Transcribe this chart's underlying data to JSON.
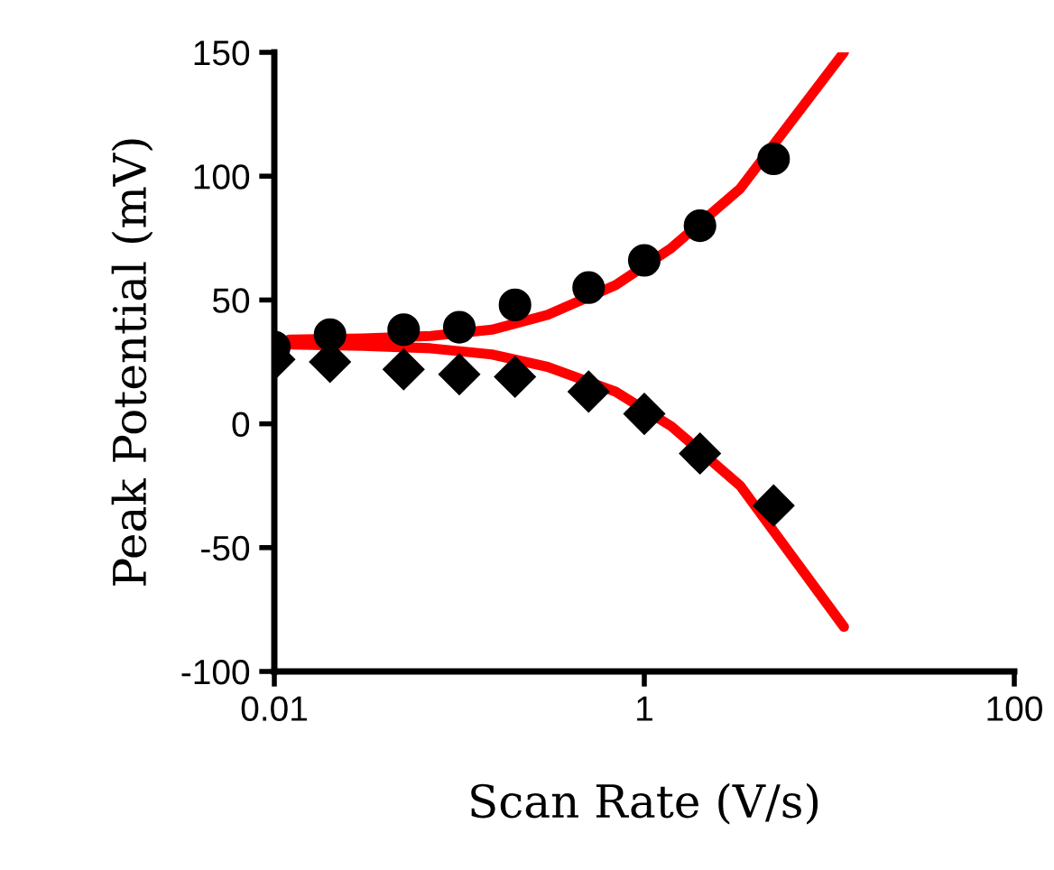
{
  "chart_data": {
    "type": "scatter",
    "xlabel": "Scan Rate (V/s)",
    "ylabel": "Peak Potential (mV)",
    "log": "x",
    "grid": false,
    "legend": false,
    "xlim": [
      0.01,
      100
    ],
    "xticks": [
      0.01,
      1,
      100
    ],
    "ylim": [
      -100,
      150
    ],
    "yticks": [
      -100,
      -50,
      0,
      50,
      100,
      150
    ],
    "series": [
      {
        "type": "scatter",
        "marker": "circle",
        "color": "#000000",
        "x": [
          0.01,
          0.02,
          0.05,
          0.1,
          0.2,
          0.5,
          1,
          2,
          5
        ],
        "values": [
          31,
          36,
          38,
          39,
          48,
          55,
          66,
          80,
          107
        ]
      },
      {
        "type": "scatter",
        "marker": "diamond",
        "color": "#000000",
        "x": [
          0.01,
          0.02,
          0.05,
          0.1,
          0.2,
          0.5,
          1,
          2,
          5
        ],
        "values": [
          26,
          25,
          22,
          20,
          19,
          13,
          4,
          -12,
          -33
        ]
      },
      {
        "type": "line",
        "marker": "none",
        "line_style": "solid",
        "color": "#ff0000",
        "x": [
          0.012,
          0.03,
          0.07,
          0.15,
          0.3,
          0.7,
          1.4,
          3.3,
          12
        ],
        "values": [
          34,
          34.5,
          35.5,
          38,
          44,
          56,
          71,
          95,
          150
        ]
      },
      {
        "type": "line",
        "marker": "none",
        "line_style": "solid",
        "color": "#ff0000",
        "x": [
          0.012,
          0.03,
          0.07,
          0.15,
          0.3,
          0.7,
          1.4,
          3.3,
          12
        ],
        "values": [
          32,
          31.5,
          30.5,
          28,
          23,
          13,
          -1,
          -25,
          -82
        ]
      }
    ]
  }
}
